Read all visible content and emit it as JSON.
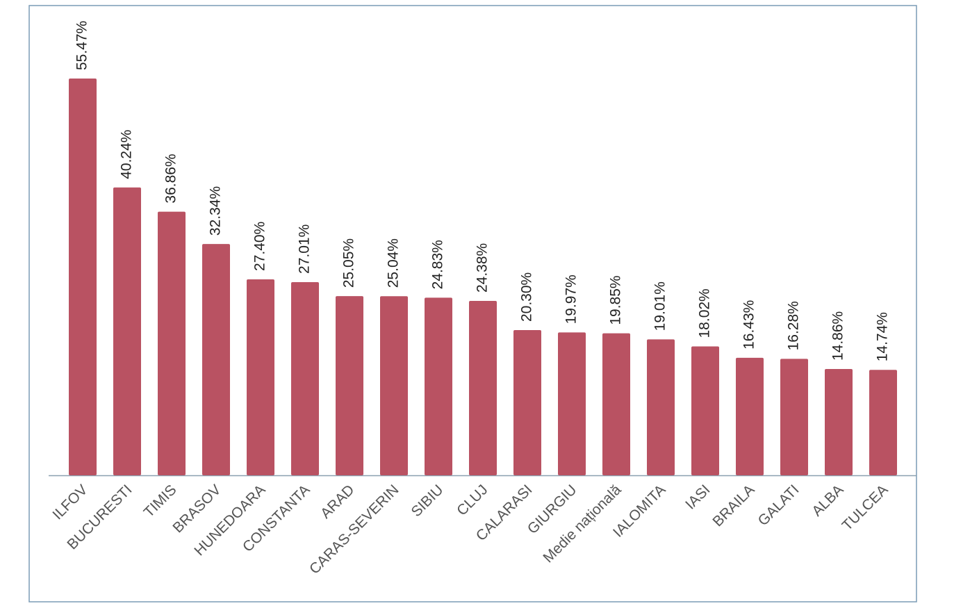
{
  "chart_data": {
    "type": "bar",
    "categories": [
      "ILFOV",
      "BUCURESTI",
      "TIMIS",
      "BRASOV",
      "HUNEDOARA",
      "CONSTANTA",
      "ARAD",
      "CARAS-SEVERIN",
      "SIBIU",
      "CLUJ",
      "CALARASI",
      "GIURGIU",
      "Medie națională",
      "IALOMITA",
      "IASI",
      "BRAILA",
      "GALATI",
      "ALBA",
      "TULCEA"
    ],
    "values": [
      55.47,
      40.24,
      36.86,
      32.34,
      27.4,
      27.01,
      25.05,
      25.04,
      24.83,
      24.38,
      20.3,
      19.97,
      19.85,
      19.01,
      18.02,
      16.43,
      16.28,
      14.86,
      14.74
    ],
    "value_labels": [
      "55.47%",
      "40.24%",
      "36.86%",
      "32.34%",
      "27.40%",
      "27.01%",
      "25.05%",
      "25.04%",
      "24.83%",
      "24.38%",
      "20.30%",
      "19.97%",
      "19.85%",
      "19.01%",
      "18.02%",
      "16.43%",
      "16.28%",
      "14.86%",
      "14.74%"
    ],
    "color": "#b95262"
  }
}
